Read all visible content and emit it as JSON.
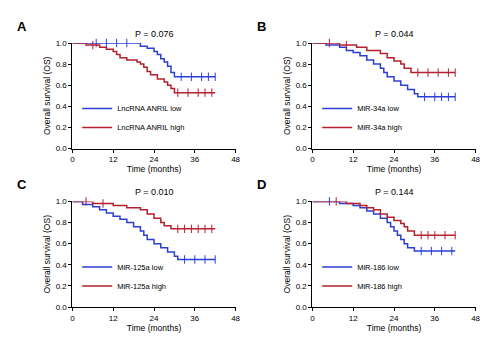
{
  "chart_data": [
    {
      "type": "line",
      "panel_label": "A",
      "annotation": "P = 0.076",
      "x_label": "Time (months)",
      "y_label": "Overall survival (OS)",
      "xlim": [
        0,
        48
      ],
      "xticks": [
        0,
        12,
        24,
        36,
        48
      ],
      "ylim": [
        0,
        1
      ],
      "yticks": [
        {
          "value": 0,
          "label": "0.0"
        },
        {
          "value": 0.2,
          "label": "0.2"
        },
        {
          "value": 0.4,
          "label": "0.4"
        },
        {
          "value": 0.6,
          "label": "0.6"
        },
        {
          "value": 0.8,
          "label": "0.8"
        },
        {
          "value": 1,
          "label": "1.0"
        }
      ],
      "legend": "lower left",
      "line_style": "step",
      "series": [
        {
          "name": "LncRNA ANRIL low",
          "color": "#2b3fd4",
          "marker": "|",
          "x": [
            0,
            20,
            22,
            24,
            25,
            26,
            27,
            28,
            29,
            30,
            42
          ],
          "values": [
            1,
            0.97,
            0.95,
            0.92,
            0.89,
            0.85,
            0.82,
            0.78,
            0.72,
            0.68,
            0.68
          ],
          "censor_x": [
            7,
            10,
            13,
            16,
            32,
            35,
            38,
            40,
            42
          ],
          "censor_values": [
            1,
            1,
            1,
            1,
            0.68,
            0.68,
            0.68,
            0.68,
            0.68
          ]
        },
        {
          "name": "LncRNA ANRIL high",
          "color": "#b5202e",
          "marker": "|",
          "x": [
            0,
            4,
            8,
            10,
            12,
            13,
            14,
            16,
            19,
            20,
            21,
            22,
            23,
            25,
            27,
            28,
            29,
            30,
            42
          ],
          "values": [
            1,
            0.98,
            0.96,
            0.94,
            0.92,
            0.89,
            0.86,
            0.84,
            0.82,
            0.8,
            0.77,
            0.73,
            0.7,
            0.66,
            0.63,
            0.6,
            0.57,
            0.53,
            0.53
          ],
          "censor_x": [
            6,
            31,
            34,
            37,
            39,
            41
          ],
          "censor_values": [
            0.98,
            0.53,
            0.53,
            0.53,
            0.53,
            0.53
          ]
        }
      ]
    },
    {
      "type": "line",
      "panel_label": "B",
      "annotation": "P = 0.044",
      "x_label": "Time (months)",
      "y_label": "Overall survival (OS)",
      "xlim": [
        0,
        48
      ],
      "xticks": [
        0,
        12,
        24,
        36,
        48
      ],
      "ylim": [
        0,
        1
      ],
      "yticks": [
        {
          "value": 0,
          "label": "0.0"
        },
        {
          "value": 0.2,
          "label": "0.2"
        },
        {
          "value": 0.4,
          "label": "0.4"
        },
        {
          "value": 0.6,
          "label": "0.6"
        },
        {
          "value": 0.8,
          "label": "0.8"
        },
        {
          "value": 1,
          "label": "1.0"
        }
      ],
      "legend": "lower left",
      "line_style": "step",
      "series": [
        {
          "name": "MiR-34a low",
          "color": "#2b3fd4",
          "marker": "|",
          "x": [
            0,
            4,
            8,
            10,
            12,
            14,
            16,
            18,
            20,
            21,
            22,
            24,
            26,
            28,
            30,
            31,
            42
          ],
          "values": [
            1,
            0.98,
            0.96,
            0.93,
            0.91,
            0.88,
            0.84,
            0.8,
            0.76,
            0.72,
            0.68,
            0.64,
            0.6,
            0.56,
            0.52,
            0.49,
            0.49
          ],
          "censor_x": [
            33,
            36,
            38,
            40,
            42
          ],
          "censor_values": [
            0.49,
            0.49,
            0.49,
            0.49,
            0.49
          ]
        },
        {
          "name": "MiR-34a high",
          "color": "#b5202e",
          "marker": "|",
          "x": [
            0,
            8,
            13,
            16,
            20,
            22,
            24,
            26,
            27,
            29,
            42
          ],
          "values": [
            1,
            0.98,
            0.96,
            0.93,
            0.9,
            0.86,
            0.83,
            0.8,
            0.76,
            0.72,
            0.72
          ],
          "censor_x": [
            5,
            10,
            31,
            34,
            37,
            40,
            42
          ],
          "censor_values": [
            1,
            0.98,
            0.72,
            0.72,
            0.72,
            0.72,
            0.72
          ]
        }
      ]
    },
    {
      "type": "line",
      "panel_label": "C",
      "annotation": "P = 0.010",
      "x_label": "Time (months)",
      "y_label": "Overall survival (OS)",
      "xlim": [
        0,
        48
      ],
      "xticks": [
        0,
        12,
        24,
        36,
        48
      ],
      "ylim": [
        0,
        1
      ],
      "yticks": [
        {
          "value": 0,
          "label": "0.0"
        },
        {
          "value": 0.2,
          "label": "0.2"
        },
        {
          "value": 0.4,
          "label": "0.4"
        },
        {
          "value": 0.6,
          "label": "0.6"
        },
        {
          "value": 0.8,
          "label": "0.8"
        },
        {
          "value": 1,
          "label": "1.0"
        }
      ],
      "legend": "lower left",
      "line_style": "step",
      "series": [
        {
          "name": "MiR-125a low",
          "color": "#2b3fd4",
          "marker": "|",
          "x": [
            0,
            3,
            6,
            8,
            10,
            12,
            14,
            16,
            18,
            20,
            21,
            22,
            24,
            26,
            28,
            30,
            31,
            42
          ],
          "values": [
            1,
            0.97,
            0.95,
            0.92,
            0.89,
            0.86,
            0.83,
            0.8,
            0.76,
            0.72,
            0.68,
            0.64,
            0.6,
            0.56,
            0.52,
            0.48,
            0.45,
            0.45
          ],
          "censor_x": [
            33,
            36,
            39,
            42
          ],
          "censor_values": [
            0.45,
            0.45,
            0.45,
            0.45
          ]
        },
        {
          "name": "MiR-125a high",
          "color": "#b5202e",
          "marker": "|",
          "x": [
            0,
            6,
            12,
            16,
            20,
            22,
            24,
            26,
            27,
            29,
            42
          ],
          "values": [
            1,
            0.98,
            0.96,
            0.94,
            0.92,
            0.88,
            0.84,
            0.8,
            0.77,
            0.74,
            0.74
          ],
          "censor_x": [
            4,
            9,
            31,
            33,
            35,
            37,
            39,
            41
          ],
          "censor_values": [
            1,
            0.98,
            0.74,
            0.74,
            0.74,
            0.74,
            0.74,
            0.74
          ]
        }
      ]
    },
    {
      "type": "line",
      "panel_label": "D",
      "annotation": "P = 0.144",
      "x_label": "Time (months)",
      "y_label": "Overall survival (OS)",
      "xlim": [
        0,
        48
      ],
      "xticks": [
        0,
        12,
        24,
        36,
        48
      ],
      "ylim": [
        0,
        1
      ],
      "yticks": [
        {
          "value": 0,
          "label": "0.0"
        },
        {
          "value": 0.2,
          "label": "0.2"
        },
        {
          "value": 0.4,
          "label": "0.4"
        },
        {
          "value": 0.6,
          "label": "0.6"
        },
        {
          "value": 0.8,
          "label": "0.8"
        },
        {
          "value": 1,
          "label": "1.0"
        }
      ],
      "legend": "lower left",
      "line_style": "step",
      "series": [
        {
          "name": "MiR-186 low",
          "color": "#2b3fd4",
          "marker": "|",
          "x": [
            0,
            8,
            12,
            14,
            16,
            18,
            20,
            22,
            23,
            24,
            25,
            26,
            27,
            28,
            30,
            42
          ],
          "values": [
            1,
            0.98,
            0.96,
            0.94,
            0.91,
            0.88,
            0.84,
            0.8,
            0.76,
            0.72,
            0.68,
            0.64,
            0.6,
            0.56,
            0.53,
            0.53
          ],
          "censor_x": [
            5,
            32,
            35,
            38,
            41
          ],
          "censor_values": [
            1,
            0.53,
            0.53,
            0.53,
            0.53
          ]
        },
        {
          "name": "MiR-186 high",
          "color": "#b5202e",
          "marker": "|",
          "x": [
            0,
            10,
            14,
            16,
            18,
            20,
            22,
            24,
            26,
            27,
            28,
            30,
            42
          ],
          "values": [
            1,
            0.98,
            0.96,
            0.94,
            0.92,
            0.88,
            0.85,
            0.82,
            0.79,
            0.76,
            0.72,
            0.68,
            0.68
          ],
          "censor_x": [
            7,
            32,
            34,
            36,
            39,
            42
          ],
          "censor_values": [
            1,
            0.68,
            0.68,
            0.68,
            0.68,
            0.68
          ]
        }
      ]
    }
  ]
}
